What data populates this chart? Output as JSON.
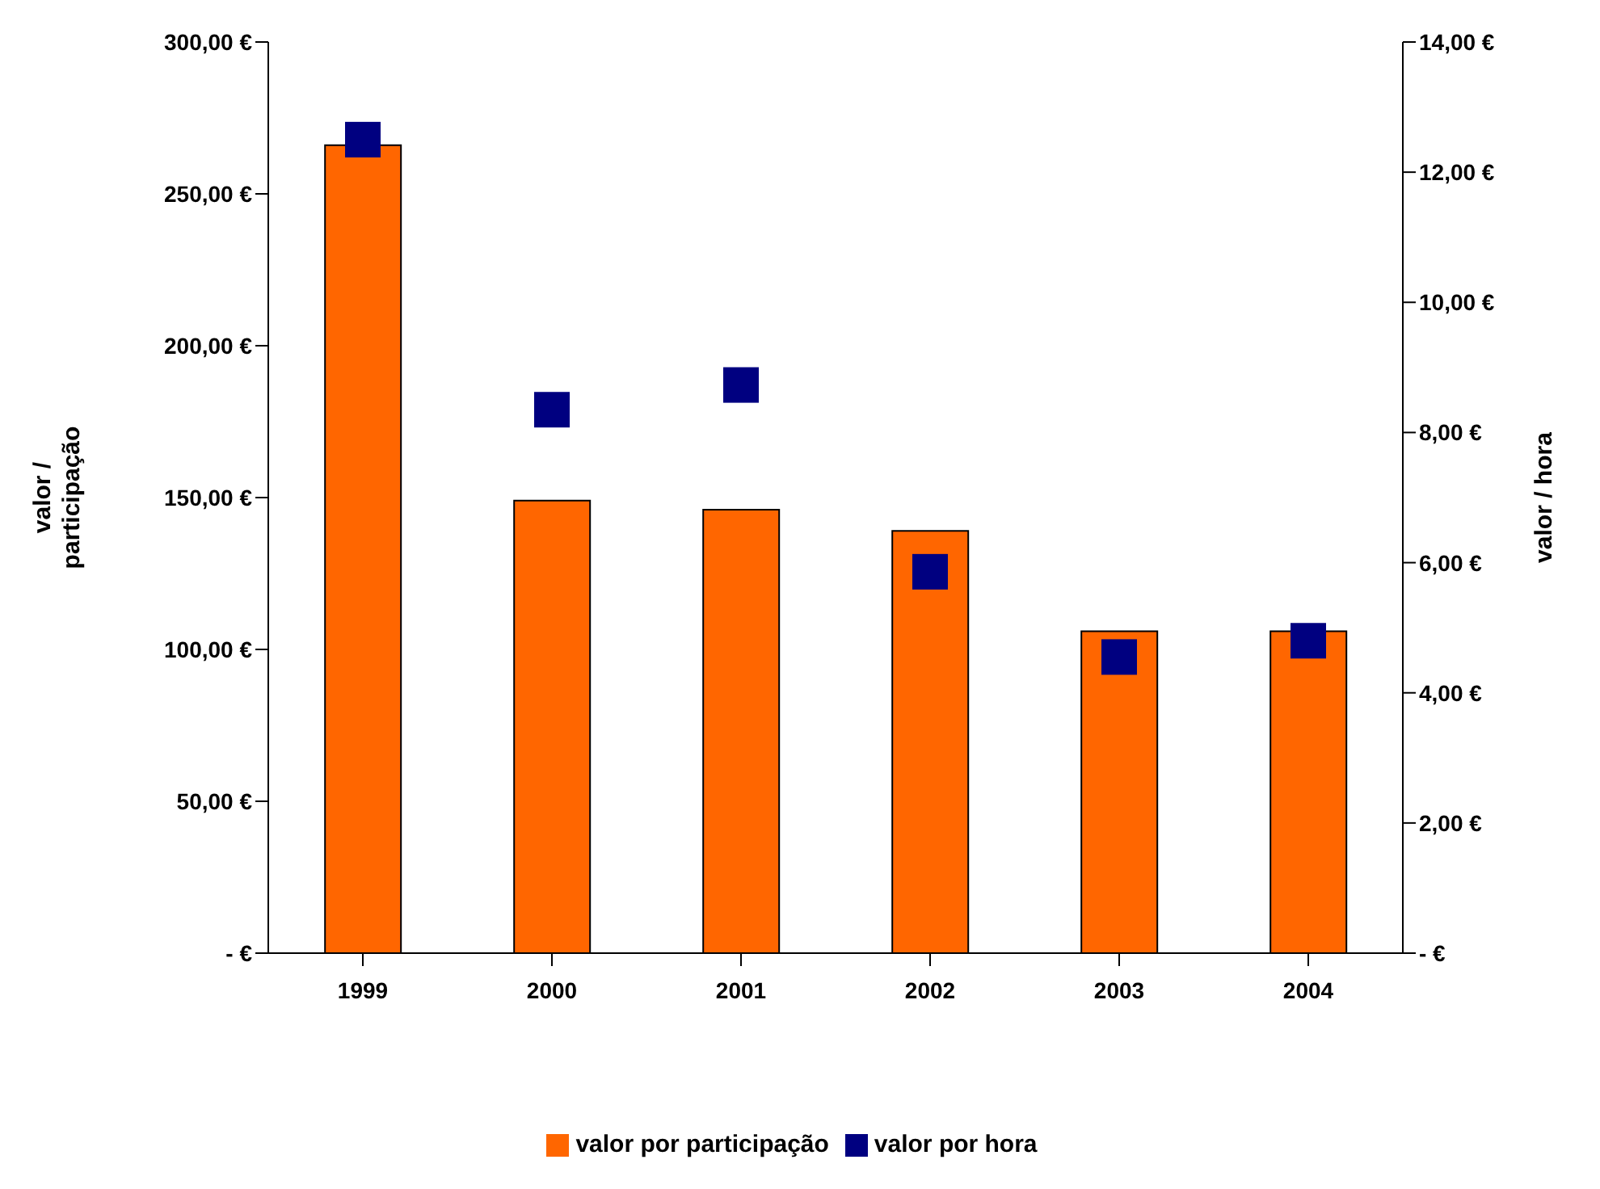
{
  "chart_data": {
    "type": "bar",
    "categories": [
      "1999",
      "2000",
      "2001",
      "2002",
      "2003",
      "2004"
    ],
    "series": [
      {
        "name": "valor por participação",
        "color": "#ff6600",
        "values": [
          266,
          149,
          146,
          139,
          106,
          106
        ]
      },
      {
        "name": "valor por hora",
        "type": "scatter",
        "axis": "y2",
        "color": "#000080",
        "values": [
          12.5,
          8.35,
          8.73,
          5.86,
          4.55,
          4.8
        ]
      }
    ],
    "ylabel": "valor / participação",
    "y2label": "valor / hora",
    "ylim": [
      0,
      300
    ],
    "yticks": [
      {
        "value": 0,
        "label": "-   €"
      },
      {
        "value": 50,
        "label": "50,00 €"
      },
      {
        "value": 100,
        "label": "100,00 €"
      },
      {
        "value": 150,
        "label": "150,00 €"
      },
      {
        "value": 200,
        "label": "200,00 €"
      },
      {
        "value": 250,
        "label": "250,00 €"
      },
      {
        "value": 300,
        "label": "300,00 €"
      }
    ],
    "y2lim": [
      0,
      14
    ],
    "y2ticks": [
      {
        "value": 0,
        "label": "-   €"
      },
      {
        "value": 2,
        "label": "2,00 €"
      },
      {
        "value": 4,
        "label": "4,00 €"
      },
      {
        "value": 6,
        "label": "6,00 €"
      },
      {
        "value": 8,
        "label": "8,00 €"
      },
      {
        "value": 10,
        "label": "10,00 €"
      },
      {
        "value": 12,
        "label": "12,00 €"
      },
      {
        "value": 14,
        "label": "14,00 €"
      }
    ],
    "grid": false,
    "legend": "bottom",
    "marker": "square"
  }
}
